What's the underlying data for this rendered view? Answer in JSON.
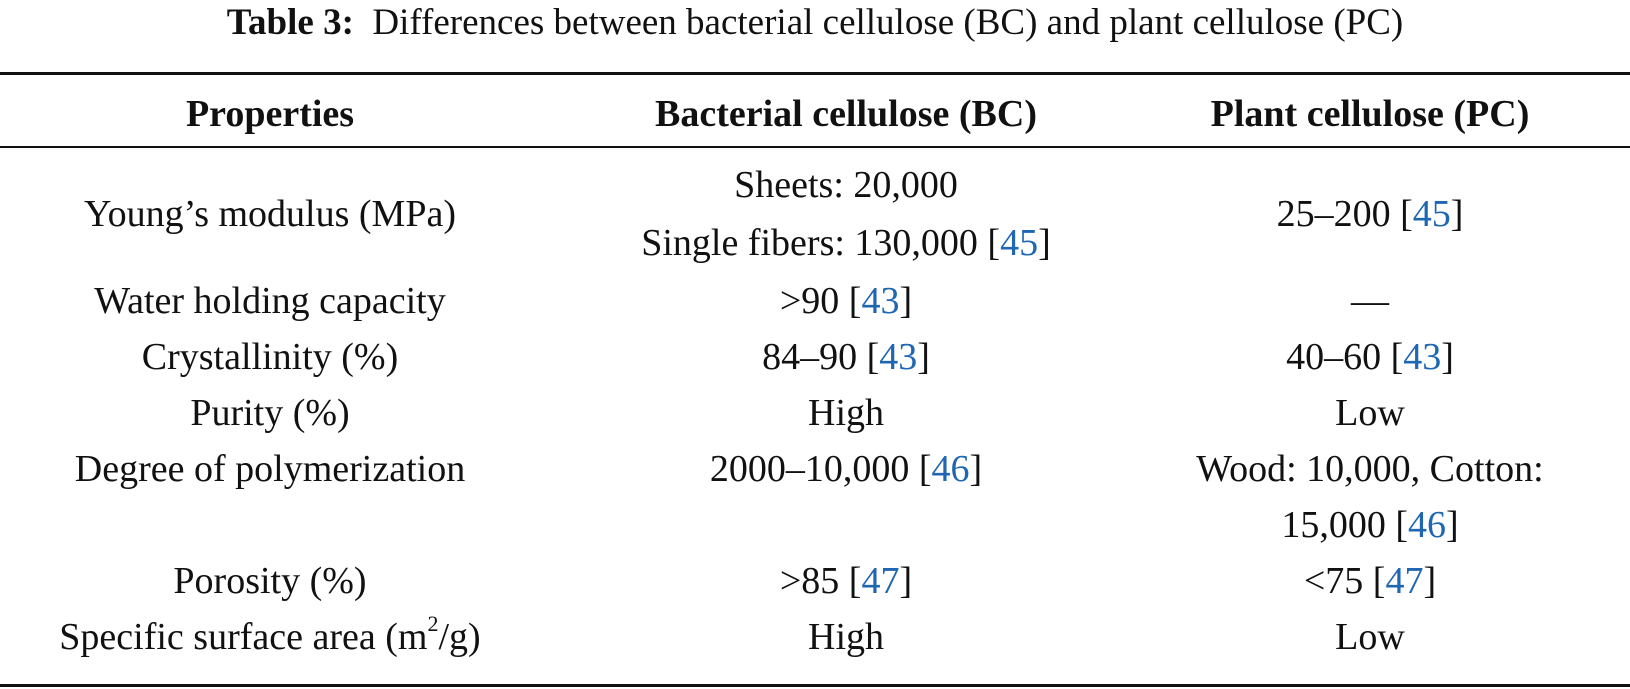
{
  "caption": {
    "label": "Table 3:",
    "text": "Differences between bacterial cellulose (BC) and plant cellulose (PC)"
  },
  "table": {
    "headers": [
      "Properties",
      "Bacterial cellulose (BC)",
      "Plant cellulose (PC)"
    ],
    "rows": [
      {
        "property": "Young’s modulus (MPa)",
        "bc_line1": "Sheets: 20,000",
        "bc_line2_pre": "Single fibers: 130,000 [",
        "bc_ref": "45",
        "bc_line2_post": "]",
        "pc_pre": "25–200 [",
        "pc_ref": "45",
        "pc_post": "]"
      },
      {
        "property": "Water holding capacity",
        "bc_pre": ">90 [",
        "bc_ref": "43",
        "bc_post": "]",
        "pc": "—"
      },
      {
        "property": "Crystallinity (%)",
        "bc_pre": "84–90 [",
        "bc_ref": "43",
        "bc_post": "]",
        "pc_pre": "40–60 [",
        "pc_ref": "43",
        "pc_post": "]"
      },
      {
        "property": "Purity (%)",
        "bc": "High",
        "pc": "Low"
      },
      {
        "property": "Degree of polymerization",
        "bc_pre": "2000–10,000 [",
        "bc_ref": "46",
        "bc_post": "]",
        "pc_line1": "Wood: 10,000, Cotton:",
        "pc_line2_pre": "15,000 [",
        "pc_ref": "46",
        "pc_line2_post": "]"
      },
      {
        "property": "Porosity (%)",
        "bc_pre": ">85 [",
        "bc_ref": "47",
        "bc_post": "]",
        "pc_pre": "<75 [",
        "pc_ref": "47",
        "pc_post": "]"
      },
      {
        "property_pre": "Specific surface area (m",
        "property_sup": "2",
        "property_post": "/g)",
        "bc": "High",
        "pc": "Low"
      }
    ]
  },
  "colors": {
    "text": "#111111",
    "reference_link": "#1f66b3",
    "rules": "#111111"
  }
}
